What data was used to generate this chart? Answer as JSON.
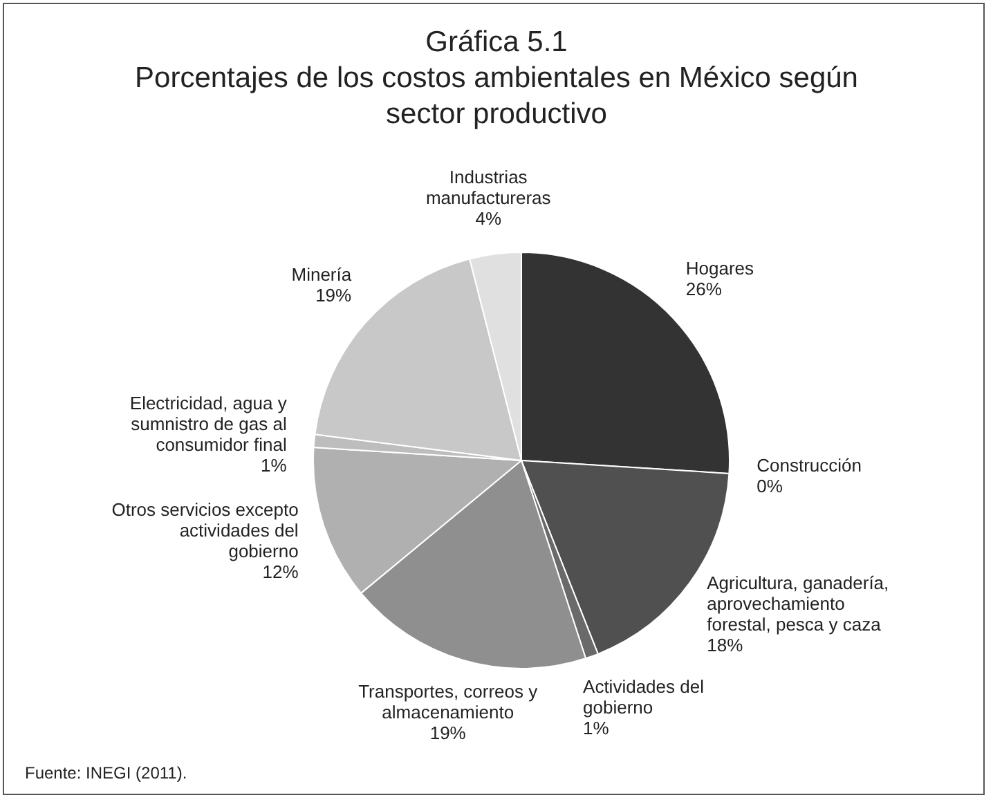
{
  "chart_data": {
    "type": "pie",
    "title": "Gráfica 5.1",
    "subtitle": "Porcentajes de los costos ambientales en México según sector productivo",
    "categories": [
      "Hogares",
      "Construcción",
      "Agricultura, ganadería, aprovechamiento forestal, pesca y caza",
      "Actividades del gobierno",
      "Transportes, correos y almacenamiento",
      "Otros servicios excepto actividades del gobierno",
      "Electricidad, agua y sumnistro de gas al consumidor final",
      "Minería",
      "Industrias manufactureras"
    ],
    "values": [
      26,
      0,
      18,
      1,
      19,
      12,
      1,
      19,
      4
    ],
    "value_labels": [
      "26%",
      "0%",
      "18%",
      "1%",
      "19%",
      "12%",
      "1%",
      "19%",
      "4%"
    ],
    "colors": [
      "#333333",
      "#3c3c3c",
      "#505050",
      "#6a6a6a",
      "#8f8f8f",
      "#b0b0b0",
      "#bdbdbd",
      "#c8c8c8",
      "#e0e0e0"
    ],
    "legend": false,
    "annotations": [
      "Fuente: INEGI (2011)."
    ]
  }
}
